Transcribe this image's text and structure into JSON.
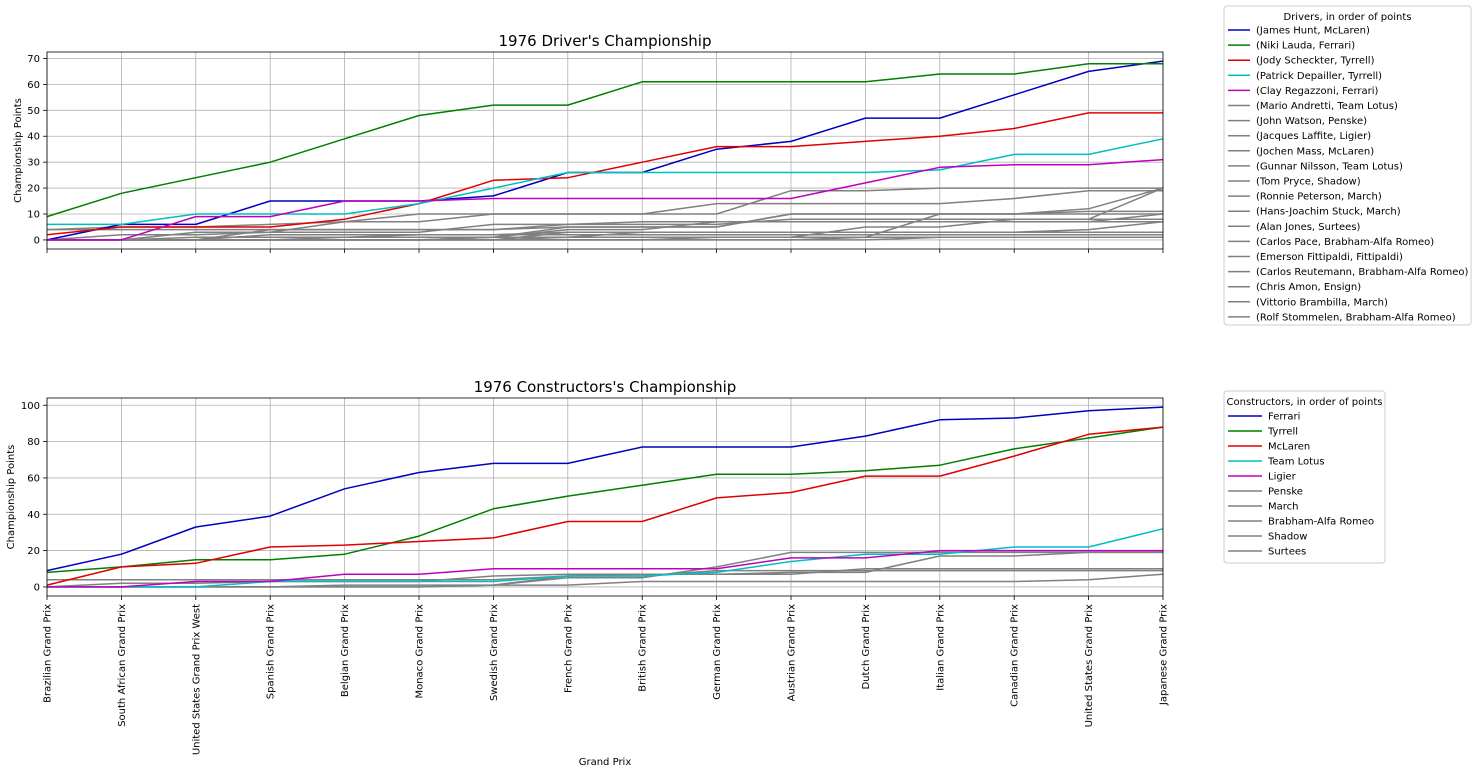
{
  "chart_data": [
    {
      "type": "line",
      "title": "1976 Driver's Championship",
      "xlabel": "",
      "ylabel": "Championship Points",
      "ylim": [
        -3.5,
        72.5
      ],
      "yticks": [
        0,
        10,
        20,
        30,
        40,
        50,
        60,
        70
      ],
      "grid": true,
      "legend_title": "Drivers, in order of points",
      "legend_placement": "outside-right",
      "x": [
        "Brazilian Grand Prix",
        "South African Grand Prix",
        "United States Grand Prix West",
        "Spanish Grand Prix",
        "Belgian Grand Prix",
        "Monaco Grand Prix",
        "Swedish Grand Prix",
        "French Grand Prix",
        "British Grand Prix",
        "German Grand Prix",
        "Austrian Grand Prix",
        "Dutch Grand Prix",
        "Italian Grand Prix",
        "Canadian Grand Prix",
        "United States Grand Prix",
        "Japanese Grand Prix"
      ],
      "series": [
        {
          "name": "(James Hunt, McLaren)",
          "color": "#0000bf",
          "values": [
            0,
            6,
            6,
            15,
            15,
            15,
            17,
            26,
            26,
            35,
            38,
            47,
            47,
            56,
            65,
            69
          ]
        },
        {
          "name": "(Niki Lauda, Ferrari)",
          "color": "#007f00",
          "values": [
            9,
            18,
            24,
            30,
            39,
            48,
            52,
            52,
            61,
            61,
            61,
            61,
            64,
            64,
            68,
            68
          ]
        },
        {
          "name": "(Jody Scheckter, Tyrrell)",
          "color": "#e00000",
          "values": [
            2,
            5,
            5,
            5,
            8,
            14,
            23,
            24,
            30,
            36,
            36,
            38,
            40,
            43,
            49,
            49
          ]
        },
        {
          "name": "(Patrick Depailler, Tyrrell)",
          "color": "#00bfbf",
          "values": [
            6,
            6,
            10,
            10,
            10,
            14,
            20,
            26,
            26,
            26,
            26,
            26,
            27,
            33,
            33,
            39
          ]
        },
        {
          "name": "(Clay Regazzoni, Ferrari)",
          "color": "#bf00bf",
          "values": [
            0,
            0,
            9,
            9,
            15,
            15,
            16,
            16,
            16,
            16,
            16,
            22,
            28,
            29,
            29,
            31
          ]
        },
        {
          "name": "(Mario Andretti, Team Lotus)",
          "color": "#808080",
          "values": [
            0,
            0,
            0,
            0,
            0,
            0,
            0,
            0,
            0,
            1,
            1,
            5,
            5,
            8,
            8,
            20
          ]
        },
        {
          "name": "(John Watson, Penske)",
          "color": "#808080",
          "values": [
            0,
            0,
            0,
            0,
            0,
            0,
            1,
            5,
            5,
            5,
            10,
            10,
            10,
            10,
            12,
            20
          ]
        },
        {
          "name": "(Jacques Laffite, Ligier)",
          "color": "#808080",
          "values": [
            0,
            0,
            3,
            3,
            7,
            7,
            10,
            10,
            10,
            10,
            19,
            19,
            20,
            20,
            20,
            20
          ]
        },
        {
          "name": "(Jochen Mass, McLaren)",
          "color": "#808080",
          "values": [
            4,
            5,
            5,
            6,
            7,
            10,
            10,
            10,
            10,
            14,
            14,
            14,
            14,
            16,
            19,
            19
          ]
        },
        {
          "name": "(Gunnar Nilsson, Team Lotus)",
          "color": "#808080",
          "values": [
            0,
            0,
            0,
            4,
            4,
            4,
            4,
            5,
            5,
            5,
            10,
            10,
            10,
            10,
            11,
            11
          ]
        },
        {
          "name": "(Tom Pryce, Shadow)",
          "color": "#808080",
          "values": [
            4,
            4,
            4,
            4,
            4,
            4,
            4,
            6,
            7,
            7,
            7,
            7,
            7,
            7,
            7,
            10
          ]
        },
        {
          "name": "(Ronnie Peterson, March)",
          "color": "#808080",
          "values": [
            0,
            0,
            0,
            0,
            0,
            0,
            0,
            1,
            1,
            1,
            1,
            1,
            10,
            10,
            10,
            10
          ]
        },
        {
          "name": "(Hans-Joachim Stuck, March)",
          "color": "#808080",
          "values": [
            0,
            2,
            2,
            3,
            3,
            3,
            6,
            6,
            6,
            6,
            8,
            8,
            8,
            8,
            8,
            8
          ]
        },
        {
          "name": "(Alan Jones, Surtees)",
          "color": "#808080",
          "values": [
            0,
            0,
            0,
            0,
            1,
            1,
            1,
            1,
            3,
            3,
            3,
            3,
            3,
            3,
            4,
            7
          ]
        },
        {
          "name": "(Carlos Pace, Brabham-Alfa Romeo)",
          "color": "#808080",
          "values": [
            0,
            0,
            0,
            0,
            0,
            0,
            1,
            4,
            4,
            7,
            7,
            7,
            7,
            7,
            7,
            7
          ]
        },
        {
          "name": "(Emerson Fittipaldi, Fittipaldi)",
          "color": "#808080",
          "values": [
            0,
            0,
            1,
            1,
            1,
            2,
            2,
            3,
            3,
            3,
            3,
            3,
            3,
            3,
            3,
            3
          ]
        },
        {
          "name": "(Carlos Reutemann, Brabham-Alfa Romeo)",
          "color": "#808080",
          "values": [
            0,
            0,
            0,
            0,
            0,
            0,
            0,
            3,
            3,
            3,
            3,
            3,
            3,
            3,
            3,
            3
          ]
        },
        {
          "name": "(Chris Amon, Ensign)",
          "color": "#808080",
          "values": [
            0,
            0,
            0,
            2,
            2,
            2,
            2,
            2,
            2,
            2,
            2,
            2,
            2,
            2,
            2,
            2
          ]
        },
        {
          "name": "(Vittorio Brambilla, March)",
          "color": "#808080",
          "values": [
            0,
            0,
            0,
            0,
            0,
            0,
            0,
            0,
            0,
            0,
            0,
            1,
            1,
            1,
            1,
            1
          ]
        },
        {
          "name": "(Rolf Stommelen, Brabham-Alfa Romeo)",
          "color": "#808080",
          "values": [
            0,
            0,
            0,
            0,
            0,
            0,
            0,
            0,
            0,
            0,
            0,
            0,
            1,
            1,
            1,
            1
          ]
        }
      ]
    },
    {
      "type": "line",
      "title": "1976 Constructors's Championship",
      "xlabel": "Grand Prix",
      "ylabel": "Championship Points",
      "ylim": [
        -5,
        104
      ],
      "yticks": [
        0,
        20,
        40,
        60,
        80,
        100
      ],
      "grid": true,
      "legend_title": "Constructors, in order of points",
      "legend_placement": "outside-right",
      "x": [
        "Brazilian Grand Prix",
        "South African Grand Prix",
        "United States Grand Prix West",
        "Spanish Grand Prix",
        "Belgian Grand Prix",
        "Monaco Grand Prix",
        "Swedish Grand Prix",
        "French Grand Prix",
        "British Grand Prix",
        "German Grand Prix",
        "Austrian Grand Prix",
        "Dutch Grand Prix",
        "Italian Grand Prix",
        "Canadian Grand Prix",
        "United States Grand Prix",
        "Japanese Grand Prix"
      ],
      "series": [
        {
          "name": "Ferrari",
          "color": "#0000bf",
          "values": [
            9,
            18,
            33,
            39,
            54,
            63,
            68,
            68,
            77,
            77,
            77,
            83,
            92,
            93,
            97,
            99
          ]
        },
        {
          "name": "Tyrrell",
          "color": "#007f00",
          "values": [
            8,
            11,
            15,
            15,
            18,
            28,
            43,
            50,
            56,
            62,
            62,
            64,
            67,
            76,
            82,
            88
          ]
        },
        {
          "name": "McLaren",
          "color": "#e00000",
          "values": [
            1,
            11,
            13,
            22,
            23,
            25,
            27,
            36,
            36,
            49,
            52,
            61,
            61,
            72,
            84,
            88
          ]
        },
        {
          "name": "Team Lotus",
          "color": "#00bfbf",
          "values": [
            0,
            0,
            0,
            3,
            3,
            3,
            3,
            6,
            6,
            8,
            14,
            18,
            18,
            22,
            22,
            32
          ]
        },
        {
          "name": "Ligier",
          "color": "#bf00bf",
          "values": [
            0,
            0,
            3,
            3,
            7,
            7,
            10,
            10,
            10,
            10,
            16,
            16,
            20,
            20,
            20,
            20
          ]
        },
        {
          "name": "Penske",
          "color": "#808080",
          "values": [
            0,
            0,
            0,
            0,
            0,
            0,
            1,
            5,
            5,
            11,
            19,
            19,
            19,
            19,
            19,
            19
          ]
        },
        {
          "name": "March",
          "color": "#808080",
          "values": [
            0,
            2,
            2,
            3,
            3,
            3,
            6,
            7,
            7,
            7,
            8,
            8,
            17,
            17,
            19,
            19
          ]
        },
        {
          "name": "Brabham-Alfa Romeo",
          "color": "#808080",
          "values": [
            0,
            0,
            0,
            0,
            0,
            0,
            1,
            6,
            6,
            9,
            9,
            9,
            9,
            9,
            9,
            9
          ]
        },
        {
          "name": "Shadow",
          "color": "#808080",
          "values": [
            4,
            4,
            4,
            4,
            4,
            4,
            4,
            6,
            7,
            7,
            7,
            10,
            10,
            10,
            10,
            10
          ]
        },
        {
          "name": "Surtees",
          "color": "#808080",
          "values": [
            0,
            0,
            0,
            0,
            1,
            1,
            1,
            1,
            3,
            3,
            3,
            3,
            3,
            3,
            4,
            7
          ]
        }
      ]
    }
  ]
}
